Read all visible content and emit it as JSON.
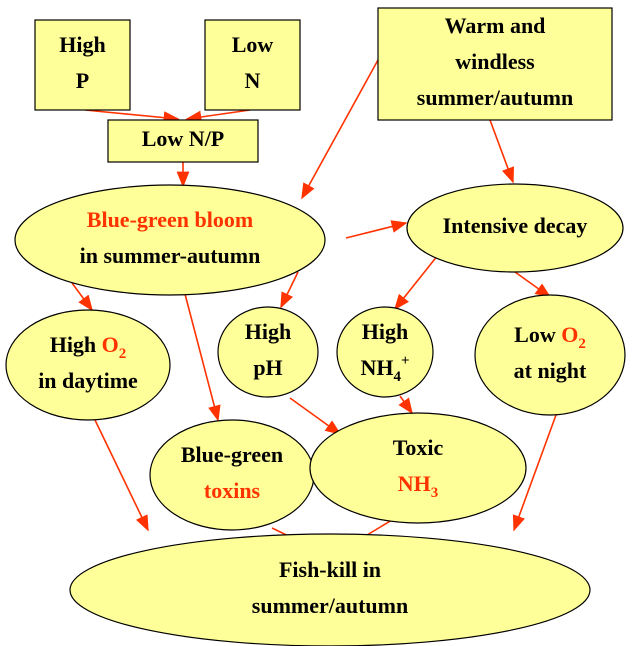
{
  "nodes": [
    {
      "lines": [
        [
          {
            "text": "High"
          }
        ],
        [
          {
            "text": "P"
          }
        ]
      ]
    },
    {
      "lines": [
        [
          {
            "text": "Low"
          }
        ],
        [
          {
            "text": "N"
          }
        ]
      ]
    },
    {
      "lines": [
        [
          {
            "text": "Warm and"
          }
        ],
        [
          {
            "text": "windless"
          }
        ],
        [
          {
            "text": "summer/autumn"
          }
        ]
      ]
    },
    {
      "lines": [
        [
          {
            "text": "Low N/P"
          }
        ]
      ]
    },
    {
      "lines": [
        [
          {
            "text": "Blue-green bloom",
            "color": "#ff3300"
          }
        ],
        [
          {
            "text": "in summer-autumn"
          }
        ]
      ]
    },
    {
      "lines": [
        [
          {
            "text": "Intensive decay"
          }
        ]
      ]
    },
    {
      "lines": [
        [
          {
            "text": "High "
          },
          {
            "text": "O",
            "color": "#ff3300"
          },
          {
            "text": "2",
            "color": "#ff3300",
            "script": "sub"
          }
        ],
        [
          {
            "text": "in daytime"
          }
        ]
      ]
    },
    {
      "lines": [
        [
          {
            "text": "High"
          }
        ],
        [
          {
            "text": "pH"
          }
        ]
      ]
    },
    {
      "lines": [
        [
          {
            "text": "High"
          }
        ],
        [
          {
            "text": "NH"
          },
          {
            "text": "4",
            "script": "sub"
          },
          {
            "text": "+",
            "script": "super"
          }
        ]
      ]
    },
    {
      "lines": [
        [
          {
            "text": "Low "
          },
          {
            "text": "O",
            "color": "#ff3300"
          },
          {
            "text": "2",
            "color": "#ff3300",
            "script": "sub"
          }
        ],
        [
          {
            "text": "at night"
          }
        ]
      ]
    },
    {
      "lines": [
        [
          {
            "text": "Blue-green"
          }
        ],
        [
          {
            "text": "toxins",
            "color": "#ff3300"
          }
        ]
      ]
    },
    {
      "lines": [
        [
          {
            "text": "Toxic"
          }
        ],
        [
          {
            "text": "NH",
            "color": "#ff3300"
          },
          {
            "text": "3",
            "color": "#ff3300",
            "script": "sub"
          }
        ]
      ]
    },
    {
      "lines": [
        [
          {
            "text": "Fish-kill in"
          }
        ],
        [
          {
            "text": "summer/autumn"
          }
        ]
      ]
    }
  ]
}
